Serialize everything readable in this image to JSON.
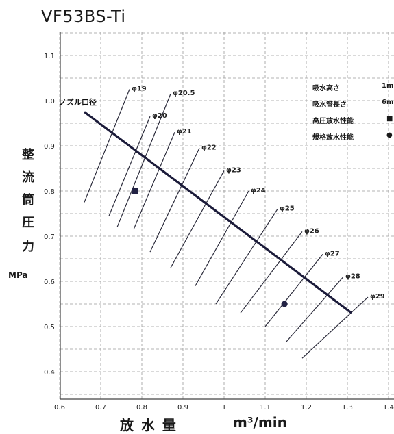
{
  "chart_data": {
    "type": "line",
    "title": "VF53BS-Ti",
    "ylabel": "整流筒圧力",
    "yunit": "MPa",
    "xlabel": "放 水 量",
    "xunit": "m³/min",
    "xlim": [
      0.6,
      1.45
    ],
    "ylim": [
      0.35,
      1.15
    ],
    "xticks": [
      "0.6",
      "0.7",
      "0.8",
      "0.9",
      "1",
      "1.1",
      "1.2",
      "1.3",
      "1.4"
    ],
    "yticks": [
      "0.4",
      "0.5",
      "0.6",
      "0.7",
      "0.8",
      "0.9",
      "1.0",
      "1.1"
    ],
    "grid": true,
    "nozzle_label": "ノズル口径",
    "series": [
      {
        "name": "ノズル口径",
        "x": [
          0.66,
          1.31
        ],
        "y": [
          0.975,
          0.53
        ]
      }
    ],
    "nozzle_lines": [
      {
        "label": "φ19",
        "x": [
          0.66,
          0.77
        ],
        "y": [
          0.775,
          1.025
        ]
      },
      {
        "label": "φ20",
        "x": [
          0.72,
          0.82
        ],
        "y": [
          0.745,
          0.965
        ]
      },
      {
        "label": "φ20.5",
        "x": [
          0.74,
          0.87
        ],
        "y": [
          0.72,
          1.015
        ]
      },
      {
        "label": "φ21",
        "x": [
          0.78,
          0.88
        ],
        "y": [
          0.715,
          0.93
        ]
      },
      {
        "label": "φ22",
        "x": [
          0.82,
          0.94
        ],
        "y": [
          0.665,
          0.895
        ]
      },
      {
        "label": "φ23",
        "x": [
          0.87,
          1.0
        ],
        "y": [
          0.63,
          0.845
        ]
      },
      {
        "label": "φ24",
        "x": [
          0.93,
          1.06
        ],
        "y": [
          0.59,
          0.8
        ]
      },
      {
        "label": "φ25",
        "x": [
          0.98,
          1.13
        ],
        "y": [
          0.55,
          0.76
        ]
      },
      {
        "label": "φ26",
        "x": [
          1.04,
          1.19
        ],
        "y": [
          0.53,
          0.71
        ]
      },
      {
        "label": "φ27",
        "x": [
          1.1,
          1.24
        ],
        "y": [
          0.5,
          0.66
        ]
      },
      {
        "label": "φ28",
        "x": [
          1.15,
          1.29
        ],
        "y": [
          0.465,
          0.61
        ]
      },
      {
        "label": "φ29",
        "x": [
          1.19,
          1.35
        ],
        "y": [
          0.43,
          0.565
        ]
      }
    ],
    "points": [
      {
        "name": "高圧放水性能",
        "marker": "square",
        "x": 0.783,
        "y": 0.8
      },
      {
        "name": "規格放水性能",
        "marker": "circle",
        "x": 1.147,
        "y": 0.55
      }
    ],
    "legend": {
      "placement": "top-right",
      "rows": [
        {
          "label": "吸水高さ",
          "value": "1m"
        },
        {
          "label": "吸水管長さ",
          "value": "6m"
        },
        {
          "label": "高圧放水性能",
          "marker": "square"
        },
        {
          "label": "規格放水性能",
          "marker": "circle"
        }
      ]
    },
    "colors": {
      "main_line": "#1b1b3a",
      "nozzle_line": "#2a2a3a",
      "grid": "#9a9a9a",
      "axis": "#444444"
    }
  }
}
